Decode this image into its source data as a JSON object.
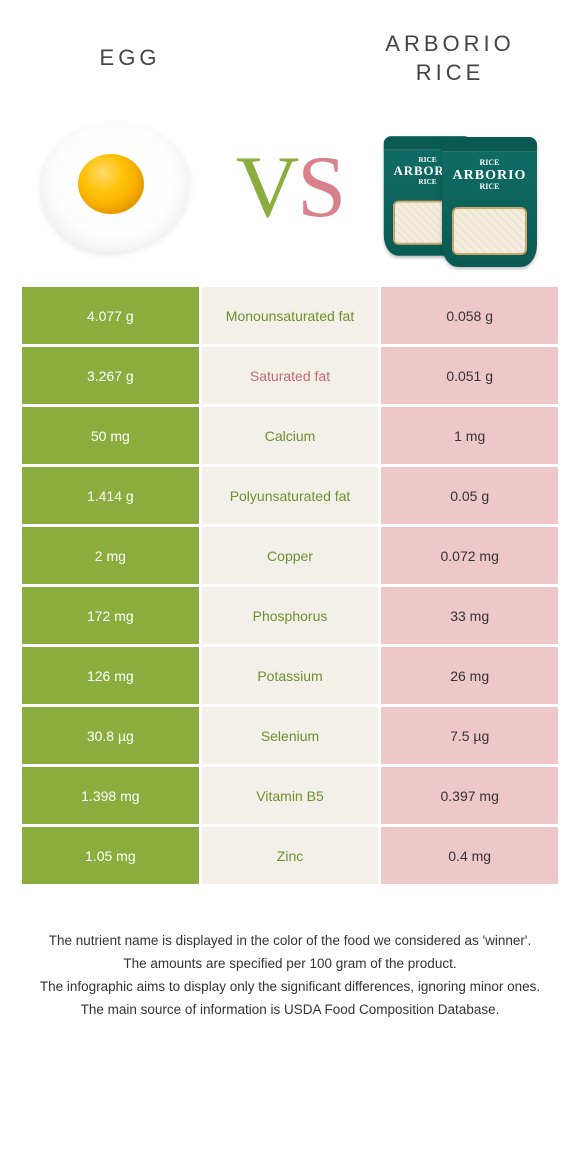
{
  "left_title": "EGG",
  "right_title": "ARBORIO RICE",
  "vs": {
    "v": "V",
    "s": "S"
  },
  "bag_text": {
    "small1": "RICE",
    "big": "ARBORIO",
    "small2": "RICE"
  },
  "colors": {
    "egg_col": "#8aad3e",
    "rice_col": "#eec7cb",
    "mid_bg": "#f3f0e9",
    "egg_text": "#6e8f2e",
    "rice_text": "#c46876"
  },
  "rows": [
    {
      "left": "4.077 g",
      "label": "Monounsaturated fat",
      "right": "0.058 g",
      "winner": "egg"
    },
    {
      "left": "3.267 g",
      "label": "Saturated fat",
      "right": "0.051 g",
      "winner": "rice"
    },
    {
      "left": "50 mg",
      "label": "Calcium",
      "right": "1 mg",
      "winner": "egg"
    },
    {
      "left": "1.414 g",
      "label": "Polyunsaturated fat",
      "right": "0.05 g",
      "winner": "egg"
    },
    {
      "left": "2 mg",
      "label": "Copper",
      "right": "0.072 mg",
      "winner": "egg"
    },
    {
      "left": "172 mg",
      "label": "Phosphorus",
      "right": "33 mg",
      "winner": "egg"
    },
    {
      "left": "126 mg",
      "label": "Potassium",
      "right": "26 mg",
      "winner": "egg"
    },
    {
      "left": "30.8 µg",
      "label": "Selenium",
      "right": "7.5 µg",
      "winner": "egg"
    },
    {
      "left": "1.398 mg",
      "label": "Vitamin B5",
      "right": "0.397 mg",
      "winner": "egg"
    },
    {
      "left": "1.05 mg",
      "label": "Zinc",
      "right": "0.4 mg",
      "winner": "egg"
    }
  ],
  "footer": [
    "The nutrient name is displayed in the color of the food we considered as 'winner'.",
    "The amounts are specified per 100 gram of the product.",
    "The infographic aims to display only the significant differences, ignoring minor ones.",
    "The main source of information is USDA Food Composition Database."
  ]
}
